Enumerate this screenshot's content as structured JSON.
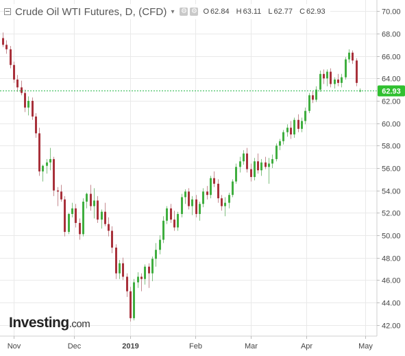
{
  "header": {
    "title": "Crude Oil WTI Futures, D, (CFD)",
    "caret": "▾",
    "icons": [
      "gear-icon",
      "settings-icon"
    ],
    "ohlc": [
      {
        "k": "O",
        "v": "62.84"
      },
      {
        "k": "H",
        "v": "63.11"
      },
      {
        "k": "L",
        "v": "62.77"
      },
      {
        "k": "C",
        "v": "62.93"
      }
    ]
  },
  "logo": {
    "brand": "Investing",
    "domain": ".com"
  },
  "colors": {
    "up": "#3fae3f",
    "down": "#a8303a",
    "price_line": "#27b84a",
    "price_tag": "#30c030",
    "grid": "#e9e9e9"
  },
  "chart_data": {
    "type": "candlestick",
    "current_price": 62.93,
    "current_price_label": "62.93",
    "ylim": [
      41.0,
      71.0
    ],
    "y_ticks": [
      42,
      44,
      46,
      48,
      50,
      52,
      54,
      56,
      58,
      60,
      62,
      64,
      66,
      68,
      70
    ],
    "y_tick_labels": [
      "42.00",
      "44.00",
      "46.00",
      "48.00",
      "50.00",
      "52.00",
      "54.00",
      "56.00",
      "58.00",
      "60.00",
      "62.00",
      "64.00",
      "66.00",
      "68.00",
      "70.00"
    ],
    "x_ticks": [
      "Nov",
      "Dec",
      "2019",
      "Feb",
      "Mar",
      "Apr",
      "May"
    ],
    "grid": true,
    "series": [
      {
        "name": "Crude Oil WTI Futures",
        "ohlc": [
          [
            67.6,
            68.1,
            66.8,
            67.0
          ],
          [
            67.0,
            67.4,
            66.2,
            66.6
          ],
          [
            66.6,
            66.9,
            64.9,
            65.2
          ],
          [
            65.2,
            65.5,
            63.6,
            63.9
          ],
          [
            63.9,
            64.3,
            62.8,
            63.2
          ],
          [
            63.2,
            63.8,
            62.5,
            62.7
          ],
          [
            62.7,
            63.0,
            61.0,
            61.4
          ],
          [
            61.4,
            62.4,
            60.7,
            62.0
          ],
          [
            62.0,
            62.3,
            60.3,
            60.6
          ],
          [
            60.6,
            60.9,
            58.7,
            59.1
          ],
          [
            59.1,
            59.6,
            55.3,
            55.7
          ],
          [
            55.7,
            56.3,
            54.8,
            56.2
          ],
          [
            56.2,
            56.8,
            55.5,
            56.5
          ],
          [
            56.5,
            57.8,
            55.8,
            56.8
          ],
          [
            56.8,
            57.0,
            53.5,
            54.0
          ],
          [
            54.0,
            54.3,
            52.6,
            53.9
          ],
          [
            53.9,
            54.5,
            53.0,
            53.2
          ],
          [
            53.2,
            53.5,
            49.9,
            50.3
          ],
          [
            50.3,
            52.0,
            50.1,
            51.9
          ],
          [
            51.9,
            52.9,
            51.6,
            52.4
          ],
          [
            52.4,
            52.8,
            50.7,
            51.1
          ],
          [
            51.1,
            51.5,
            49.6,
            50.1
          ],
          [
            50.1,
            53.3,
            49.9,
            53.0
          ],
          [
            53.0,
            53.8,
            52.4,
            53.7
          ],
          [
            53.7,
            54.5,
            52.2,
            52.6
          ],
          [
            52.6,
            54.2,
            51.5,
            53.1
          ],
          [
            53.1,
            53.5,
            51.1,
            51.4
          ],
          [
            51.4,
            52.3,
            50.6,
            52.1
          ],
          [
            52.1,
            52.9,
            50.8,
            51.0
          ],
          [
            51.0,
            51.6,
            49.9,
            50.4
          ],
          [
            50.4,
            50.8,
            48.4,
            48.9
          ],
          [
            48.9,
            49.2,
            46.1,
            46.6
          ],
          [
            46.6,
            47.8,
            46.1,
            47.5
          ],
          [
            47.5,
            48.0,
            46.0,
            46.3
          ],
          [
            46.3,
            46.6,
            44.5,
            45.0
          ],
          [
            45.0,
            45.4,
            42.3,
            42.6
          ],
          [
            42.6,
            46.1,
            42.4,
            45.8
          ],
          [
            45.8,
            46.7,
            45.3,
            46.3
          ],
          [
            46.3,
            46.6,
            45.0,
            46.1
          ],
          [
            46.1,
            47.4,
            45.6,
            47.2
          ],
          [
            47.2,
            47.5,
            45.3,
            46.6
          ],
          [
            46.6,
            48.1,
            45.9,
            47.9
          ],
          [
            47.9,
            49.3,
            47.2,
            48.7
          ],
          [
            48.7,
            50.0,
            48.3,
            49.6
          ],
          [
            49.6,
            51.7,
            49.3,
            51.3
          ],
          [
            51.3,
            52.6,
            51.0,
            52.4
          ],
          [
            52.4,
            52.8,
            51.1,
            51.4
          ],
          [
            51.4,
            52.2,
            50.4,
            50.7
          ],
          [
            50.7,
            52.1,
            50.4,
            51.9
          ],
          [
            51.9,
            53.7,
            51.6,
            53.4
          ],
          [
            53.4,
            54.1,
            52.8,
            53.9
          ],
          [
            53.9,
            54.2,
            52.3,
            52.6
          ],
          [
            52.6,
            53.5,
            51.8,
            53.2
          ],
          [
            53.2,
            53.6,
            51.6,
            51.9
          ],
          [
            51.9,
            53.0,
            51.3,
            52.8
          ],
          [
            52.8,
            54.2,
            52.5,
            53.9
          ],
          [
            53.9,
            54.4,
            53.2,
            53.6
          ],
          [
            53.6,
            55.3,
            53.3,
            55.1
          ],
          [
            55.1,
            55.7,
            54.3,
            54.6
          ],
          [
            54.6,
            55.0,
            52.9,
            53.3
          ],
          [
            53.3,
            53.6,
            52.2,
            52.6
          ],
          [
            52.6,
            53.4,
            51.7,
            52.9
          ],
          [
            52.9,
            53.8,
            52.4,
            53.6
          ],
          [
            53.6,
            55.0,
            53.4,
            54.8
          ],
          [
            54.8,
            56.4,
            54.6,
            56.1
          ],
          [
            56.1,
            57.0,
            55.6,
            56.6
          ],
          [
            56.6,
            57.6,
            56.3,
            57.3
          ],
          [
            57.3,
            57.8,
            55.6,
            55.9
          ],
          [
            55.9,
            56.4,
            54.8,
            55.2
          ],
          [
            55.2,
            56.9,
            54.9,
            56.6
          ],
          [
            56.6,
            57.3,
            55.5,
            55.8
          ],
          [
            55.8,
            56.8,
            55.3,
            56.5
          ],
          [
            56.5,
            57.0,
            55.9,
            56.1
          ],
          [
            56.1,
            56.9,
            54.6,
            56.4
          ],
          [
            56.4,
            57.2,
            56.0,
            56.8
          ],
          [
            56.8,
            58.2,
            56.6,
            58.0
          ],
          [
            58.0,
            58.6,
            57.6,
            58.4
          ],
          [
            58.4,
            59.4,
            58.1,
            59.2
          ],
          [
            59.2,
            59.9,
            58.8,
            59.6
          ],
          [
            59.6,
            60.2,
            58.6,
            59.0
          ],
          [
            59.0,
            60.5,
            58.7,
            60.3
          ],
          [
            60.3,
            60.8,
            59.2,
            59.5
          ],
          [
            59.5,
            60.5,
            59.2,
            60.2
          ],
          [
            60.2,
            61.4,
            59.9,
            61.1
          ],
          [
            61.1,
            62.7,
            60.9,
            62.5
          ],
          [
            62.5,
            62.9,
            61.8,
            62.1
          ],
          [
            62.1,
            63.3,
            61.9,
            63.0
          ],
          [
            63.0,
            64.7,
            62.8,
            64.4
          ],
          [
            64.4,
            64.8,
            63.5,
            64.0
          ],
          [
            64.0,
            64.8,
            63.3,
            64.6
          ],
          [
            64.6,
            64.9,
            63.2,
            63.5
          ],
          [
            63.5,
            64.1,
            63.1,
            63.9
          ],
          [
            63.9,
            64.4,
            63.3,
            63.6
          ],
          [
            63.6,
            64.4,
            63.2,
            64.1
          ],
          [
            64.1,
            65.9,
            63.9,
            65.7
          ],
          [
            65.7,
            66.6,
            65.4,
            66.3
          ],
          [
            66.3,
            66.5,
            65.3,
            65.6
          ],
          [
            65.6,
            65.8,
            63.3,
            63.6
          ],
          [
            62.84,
            63.11,
            62.77,
            62.93
          ]
        ]
      }
    ]
  }
}
